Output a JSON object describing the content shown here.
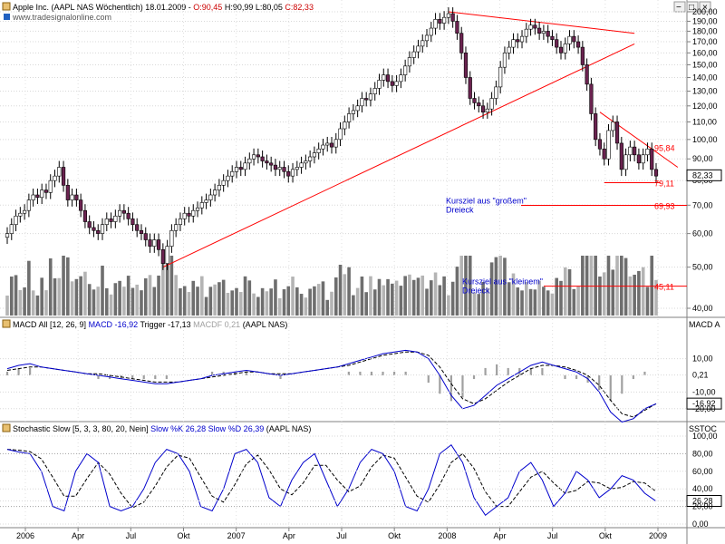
{
  "header": {
    "title_prefix": "Apple Inc. (AAPL NAS  Wöchentlich) 18.01.2009 - ",
    "ohlc_open": "O:90,45",
    "ohlc_high": "H:90,99",
    "ohlc_low": "L:80,05",
    "ohlc_close": "C:82,33",
    "watermark": "www.tradesignalonline.com"
  },
  "window_controls": {
    "minimize": "−",
    "maximize": "□",
    "close": "×"
  },
  "colors": {
    "up_candle": "#ffffff",
    "down_candle": "#6b2350",
    "trendline": "#ff0000",
    "annotation": "#0000cc",
    "macd": "#0000cc",
    "stoch": "#0000cc",
    "histogram": "#a0a0a0",
    "volume_dark": "#6e6e6e",
    "volume_light": "#b4b4b4"
  },
  "chart_data": [
    {
      "type": "candlestick",
      "panel": "price",
      "scale": "log",
      "ylim": [
        40,
        205
      ],
      "y_ticks": [
        "200,00",
        "190,00",
        "180,00",
        "170,00",
        "160,00",
        "150,00",
        "140,00",
        "130,00",
        "120,00",
        "110,00",
        "100,00",
        "90,00",
        "80,00",
        "70,00",
        "60,00",
        "50,00",
        "40,00"
      ],
      "x_ticks": [
        "2006",
        "Apr",
        "Jul",
        "Okt",
        "2007",
        "Apr",
        "Jul",
        "Okt",
        "2008",
        "Apr",
        "Jul",
        "Okt",
        "2009"
      ],
      "last_close": "82,33",
      "closes": [
        60,
        63,
        66,
        67,
        68,
        72,
        74,
        73,
        76,
        75,
        80,
        82,
        86,
        78,
        72,
        74,
        72,
        68,
        64,
        62,
        61,
        60,
        63,
        65,
        64,
        66,
        68,
        67,
        65,
        63,
        61,
        60,
        58,
        56,
        58,
        55,
        51,
        56,
        61,
        63,
        65,
        67,
        66,
        68,
        69,
        71,
        72,
        74,
        76,
        78,
        80,
        82,
        84,
        86,
        85,
        88,
        90,
        92,
        91,
        89,
        88,
        87,
        85,
        86,
        84,
        82,
        85,
        86,
        88,
        89,
        91,
        93,
        95,
        97,
        98,
        96,
        100,
        106,
        110,
        115,
        117,
        120,
        125,
        124,
        128,
        132,
        138,
        142,
        137,
        134,
        137,
        142,
        149,
        156,
        161,
        166,
        171,
        176,
        183,
        192,
        188,
        194,
        198,
        190,
        178,
        160,
        140,
        125,
        122,
        120,
        116,
        118,
        125,
        133,
        148,
        160,
        165,
        172,
        170,
        175,
        182,
        186,
        183,
        178,
        180,
        175,
        172,
        165,
        160,
        168,
        175,
        170,
        165,
        150,
        135,
        115,
        100,
        95,
        90,
        105,
        110,
        98,
        85,
        92,
        96,
        92,
        88,
        92,
        95,
        85,
        82
      ],
      "annotations": [
        {
          "label_line1": "Kursziel aus \"großem\"",
          "label_line2": "Dreieck",
          "target": "69,93",
          "target_value": 69.93
        },
        {
          "label_line1": "Kursziel aus \"kleinem\"",
          "label_line2": "Dreieck",
          "target": "45,11",
          "target_value": 45.11
        },
        {
          "target": "95,84",
          "target_value": 95.84
        },
        {
          "target": "79,11",
          "target_value": 79.11
        }
      ]
    },
    {
      "type": "line",
      "panel": "macd",
      "title": "MACD All [12, 26, 9]",
      "macd_label": "MACD -16,92",
      "trigger_label": "Trigger -17,13",
      "macdf_label": "MACDF 0,21",
      "source": "(AAPL NAS)",
      "right_title": "MACD A",
      "ylim": [
        -25,
        25
      ],
      "y_ticks": [
        "10,00",
        "0,21",
        "-10,00",
        "-16,92",
        "-20,00"
      ],
      "macd_values": [
        4,
        6,
        7,
        5,
        4,
        3,
        2,
        1,
        0,
        -1,
        -2,
        -3,
        -4,
        -5,
        -5,
        -4,
        -3,
        -2,
        0,
        1,
        2,
        3,
        2,
        1,
        0,
        1,
        2,
        3,
        4,
        5,
        7,
        9,
        11,
        13,
        14,
        15,
        14,
        10,
        0,
        -12,
        -20,
        -18,
        -12,
        -6,
        -2,
        2,
        6,
        8,
        6,
        4,
        2,
        -2,
        -10,
        -22,
        -28,
        -26,
        -20,
        -17
      ],
      "trigger_values": [
        3,
        4,
        5,
        5,
        4,
        3,
        2,
        1,
        1,
        0,
        -1,
        -2,
        -3,
        -4,
        -4,
        -4,
        -3,
        -2,
        -1,
        0,
        1,
        2,
        2,
        1,
        1,
        1,
        2,
        3,
        4,
        5,
        6,
        8,
        10,
        12,
        13,
        14,
        14,
        12,
        5,
        -5,
        -14,
        -17,
        -14,
        -9,
        -4,
        0,
        4,
        6,
        6,
        5,
        3,
        0,
        -6,
        -15,
        -23,
        -25,
        -21,
        -17
      ]
    },
    {
      "type": "line",
      "panel": "stochastic",
      "title": "Stochastic Slow [5, 3, 3, 80, 20, Nein]",
      "slowk_label": "Slow %K 26,28",
      "slowd_label": "Slow %D 26,39",
      "source": "(AAPL NAS)",
      "right_title": "SSTOC",
      "ylim": [
        0,
        100
      ],
      "y_ticks": [
        "100,00",
        "80,00",
        "60,00",
        "40,00",
        "26,28",
        "20,00",
        "0,00"
      ],
      "k_values": [
        85,
        82,
        80,
        60,
        20,
        15,
        60,
        80,
        70,
        20,
        15,
        20,
        40,
        70,
        85,
        80,
        60,
        20,
        15,
        40,
        80,
        85,
        70,
        30,
        20,
        50,
        70,
        80,
        50,
        20,
        40,
        70,
        85,
        80,
        60,
        20,
        15,
        40,
        80,
        90,
        70,
        30,
        10,
        20,
        30,
        60,
        70,
        50,
        20,
        35,
        60,
        50,
        30,
        40,
        55,
        50,
        35,
        26
      ]
    }
  ]
}
